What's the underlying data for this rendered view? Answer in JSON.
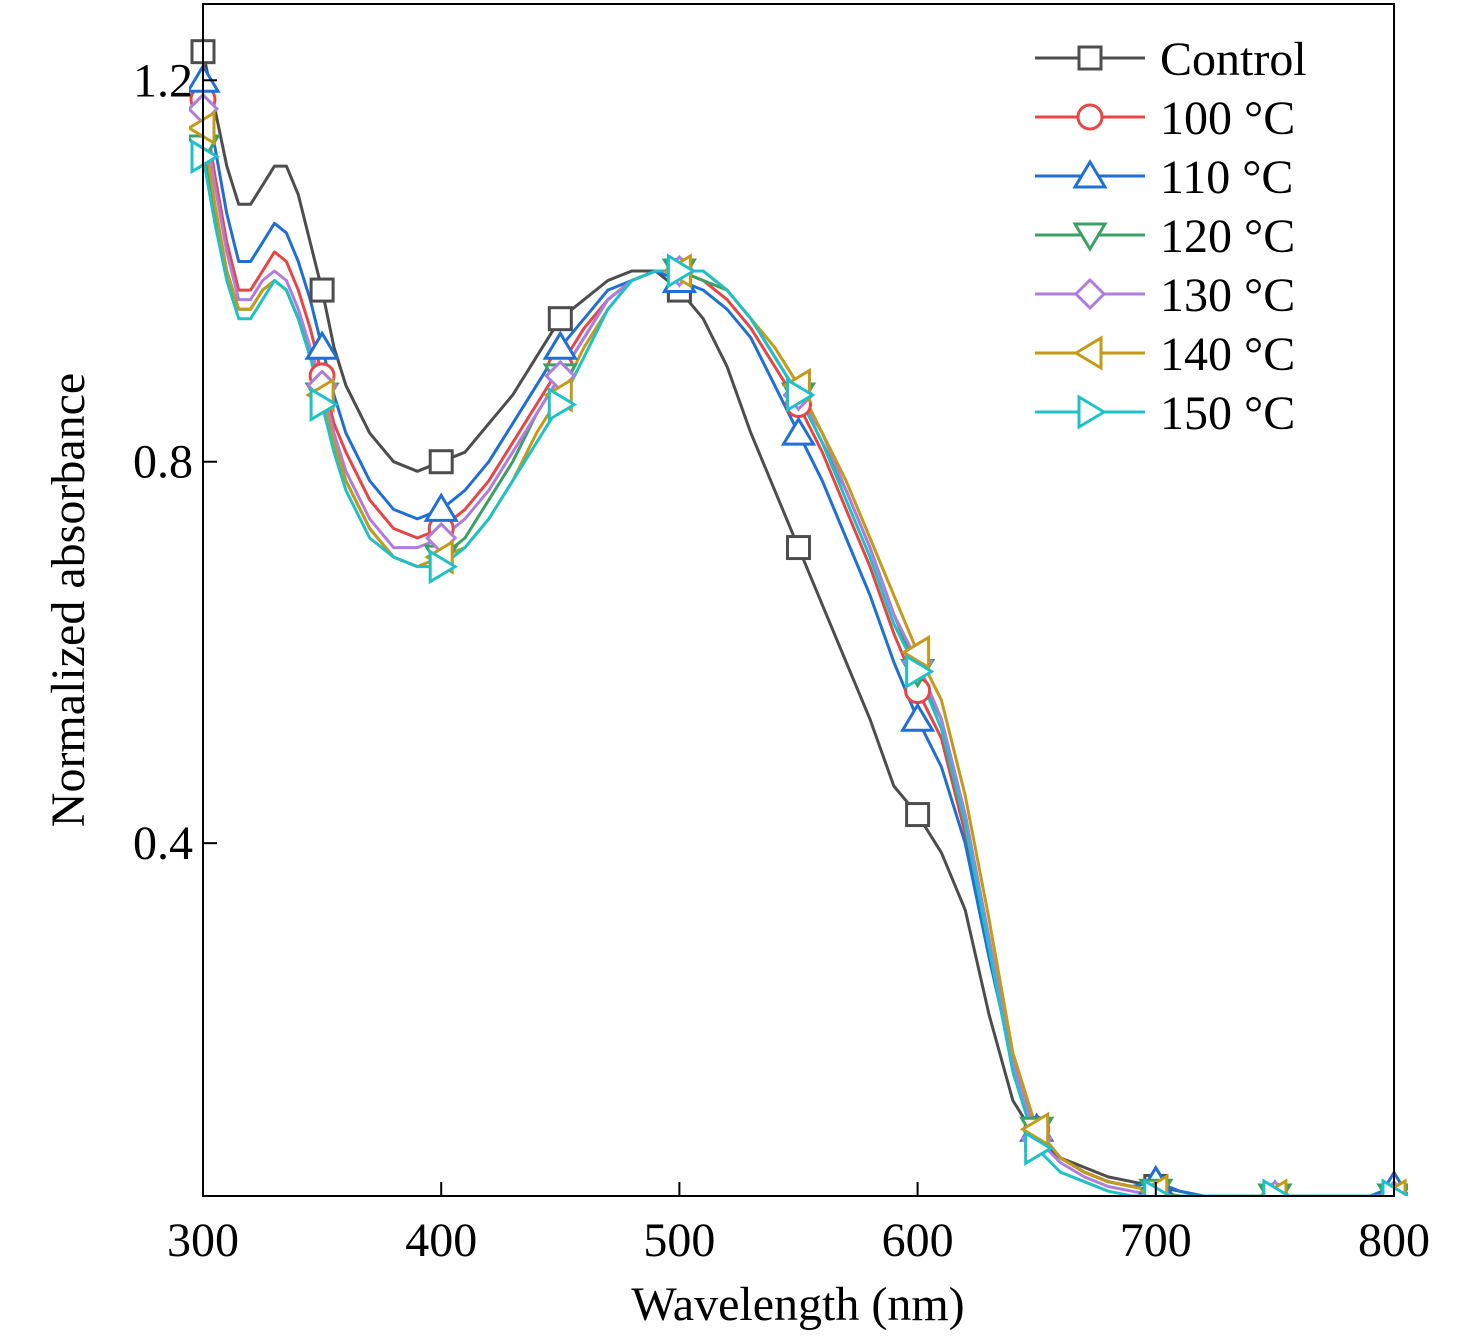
{
  "chart_data": {
    "type": "line",
    "xlabel": "Wavelength (nm)",
    "ylabel": "Normalized absorbance",
    "xlim": [
      300,
      800
    ],
    "ylim": [
      0.03,
      1.28
    ],
    "xticks": [
      300,
      400,
      500,
      600,
      700,
      800
    ],
    "yticks": [
      0.4,
      0.8,
      1.2
    ],
    "xtick_labels": [
      "300",
      "400",
      "500",
      "600",
      "700",
      "800"
    ],
    "ytick_labels": [
      "0.4",
      "0.8",
      "1.2"
    ],
    "grid": false,
    "legend_position": "top-right",
    "marker_x": [
      300,
      350,
      400,
      450,
      500,
      550,
      600,
      650,
      700,
      750,
      800
    ],
    "series": [
      {
        "name": "Control",
        "color": "#4d4d4d",
        "marker": "square",
        "x": [
          300,
          305,
          310,
          315,
          320,
          325,
          330,
          335,
          340,
          345,
          350,
          355,
          360,
          370,
          380,
          390,
          400,
          410,
          420,
          430,
          440,
          450,
          460,
          470,
          480,
          490,
          500,
          510,
          520,
          530,
          540,
          550,
          560,
          570,
          580,
          590,
          600,
          610,
          620,
          630,
          640,
          650,
          660,
          670,
          680,
          690,
          700,
          710,
          720,
          730,
          740,
          750,
          760,
          770,
          780,
          790,
          800
        ],
        "y": [
          1.23,
          1.17,
          1.11,
          1.07,
          1.07,
          1.09,
          1.11,
          1.11,
          1.08,
          1.03,
          0.98,
          0.92,
          0.88,
          0.83,
          0.8,
          0.79,
          0.8,
          0.81,
          0.84,
          0.87,
          0.91,
          0.95,
          0.97,
          0.99,
          1.0,
          1.0,
          0.98,
          0.95,
          0.9,
          0.83,
          0.77,
          0.71,
          0.65,
          0.59,
          0.53,
          0.46,
          0.43,
          0.39,
          0.33,
          0.22,
          0.13,
          0.09,
          0.07,
          0.06,
          0.05,
          0.045,
          0.04,
          0.035,
          0.03,
          0.03,
          0.03,
          0.03,
          0.03,
          0.03,
          0.03,
          0.03,
          0.03
        ]
      },
      {
        "name": "100 °C",
        "color": "#e84545",
        "marker": "circle",
        "x": [
          300,
          305,
          310,
          315,
          320,
          325,
          330,
          335,
          340,
          345,
          350,
          355,
          360,
          370,
          380,
          390,
          400,
          410,
          420,
          430,
          440,
          450,
          460,
          470,
          480,
          490,
          500,
          510,
          520,
          530,
          540,
          550,
          560,
          570,
          580,
          590,
          600,
          610,
          620,
          630,
          640,
          650,
          660,
          670,
          680,
          690,
          700,
          710,
          720,
          730,
          740,
          750,
          760,
          770,
          780,
          790,
          800
        ],
        "y": [
          1.18,
          1.1,
          1.03,
          0.98,
          0.98,
          1.0,
          1.02,
          1.01,
          0.98,
          0.94,
          0.89,
          0.84,
          0.81,
          0.76,
          0.73,
          0.72,
          0.73,
          0.75,
          0.78,
          0.82,
          0.86,
          0.9,
          0.94,
          0.97,
          0.99,
          1.0,
          1.0,
          0.99,
          0.97,
          0.94,
          0.9,
          0.86,
          0.81,
          0.75,
          0.69,
          0.62,
          0.56,
          0.51,
          0.41,
          0.29,
          0.17,
          0.1,
          0.07,
          0.055,
          0.045,
          0.04,
          0.035,
          0.03,
          0.03,
          0.03,
          0.03,
          0.03,
          0.03,
          0.03,
          0.03,
          0.03,
          0.03
        ]
      },
      {
        "name": "110 °C",
        "color": "#1f6fd6",
        "marker": "triangle-up",
        "x": [
          300,
          305,
          310,
          315,
          320,
          325,
          330,
          335,
          340,
          345,
          350,
          355,
          360,
          370,
          380,
          390,
          400,
          410,
          420,
          430,
          440,
          450,
          460,
          470,
          480,
          490,
          500,
          510,
          520,
          530,
          540,
          550,
          560,
          570,
          580,
          590,
          600,
          610,
          620,
          630,
          640,
          650,
          660,
          670,
          680,
          690,
          700,
          710,
          720,
          730,
          740,
          750,
          760,
          770,
          780,
          790,
          800
        ],
        "y": [
          1.2,
          1.13,
          1.06,
          1.01,
          1.01,
          1.03,
          1.05,
          1.04,
          1.01,
          0.97,
          0.92,
          0.87,
          0.83,
          0.78,
          0.75,
          0.74,
          0.75,
          0.77,
          0.8,
          0.84,
          0.88,
          0.92,
          0.95,
          0.98,
          0.99,
          1.0,
          0.99,
          0.98,
          0.96,
          0.93,
          0.88,
          0.83,
          0.78,
          0.72,
          0.66,
          0.59,
          0.53,
          0.48,
          0.4,
          0.28,
          0.17,
          0.1,
          0.07,
          0.055,
          0.045,
          0.04,
          0.045,
          0.035,
          0.03,
          0.03,
          0.03,
          0.03,
          0.03,
          0.03,
          0.03,
          0.03,
          0.04
        ]
      },
      {
        "name": "120 °C",
        "color": "#3aa064",
        "marker": "triangle-down",
        "x": [
          300,
          305,
          310,
          315,
          320,
          325,
          330,
          335,
          340,
          345,
          350,
          355,
          360,
          370,
          380,
          390,
          400,
          410,
          420,
          430,
          440,
          450,
          460,
          470,
          480,
          490,
          500,
          510,
          520,
          530,
          540,
          550,
          560,
          570,
          580,
          590,
          600,
          610,
          620,
          630,
          640,
          650,
          660,
          670,
          680,
          690,
          700,
          710,
          720,
          730,
          740,
          750,
          760,
          770,
          780,
          790,
          800
        ],
        "y": [
          1.13,
          1.06,
          1.0,
          0.96,
          0.96,
          0.98,
          0.99,
          0.98,
          0.95,
          0.91,
          0.87,
          0.82,
          0.78,
          0.73,
          0.7,
          0.69,
          0.7,
          0.72,
          0.76,
          0.8,
          0.85,
          0.89,
          0.93,
          0.97,
          0.99,
          1.0,
          1.0,
          0.99,
          0.98,
          0.95,
          0.91,
          0.87,
          0.82,
          0.77,
          0.71,
          0.64,
          0.58,
          0.53,
          0.43,
          0.3,
          0.17,
          0.1,
          0.07,
          0.055,
          0.045,
          0.04,
          0.035,
          0.03,
          0.03,
          0.03,
          0.03,
          0.03,
          0.03,
          0.03,
          0.03,
          0.03,
          0.03
        ]
      },
      {
        "name": "130 °C",
        "color": "#b07ce0",
        "marker": "diamond",
        "x": [
          300,
          305,
          310,
          315,
          320,
          325,
          330,
          335,
          340,
          345,
          350,
          355,
          360,
          370,
          380,
          390,
          400,
          410,
          420,
          430,
          440,
          450,
          460,
          470,
          480,
          490,
          500,
          510,
          520,
          530,
          540,
          550,
          560,
          570,
          580,
          590,
          600,
          610,
          620,
          630,
          640,
          650,
          660,
          670,
          680,
          690,
          700,
          710,
          720,
          730,
          740,
          750,
          760,
          770,
          780,
          790,
          800
        ],
        "y": [
          1.17,
          1.09,
          1.02,
          0.97,
          0.97,
          0.99,
          1.0,
          0.99,
          0.96,
          0.92,
          0.88,
          0.83,
          0.79,
          0.74,
          0.71,
          0.71,
          0.72,
          0.74,
          0.77,
          0.81,
          0.85,
          0.89,
          0.93,
          0.97,
          0.99,
          1.0,
          1.0,
          1.0,
          0.98,
          0.95,
          0.91,
          0.87,
          0.83,
          0.77,
          0.71,
          0.64,
          0.59,
          0.53,
          0.43,
          0.3,
          0.17,
          0.09,
          0.065,
          0.05,
          0.04,
          0.035,
          0.03,
          0.03,
          0.03,
          0.03,
          0.03,
          0.03,
          0.03,
          0.03,
          0.03,
          0.03,
          0.03
        ]
      },
      {
        "name": "140 °C",
        "color": "#c59a17",
        "marker": "triangle-left",
        "x": [
          300,
          305,
          310,
          315,
          320,
          325,
          330,
          335,
          340,
          345,
          350,
          355,
          360,
          370,
          380,
          390,
          400,
          410,
          420,
          430,
          440,
          450,
          460,
          470,
          480,
          490,
          500,
          510,
          520,
          530,
          540,
          550,
          560,
          570,
          580,
          590,
          600,
          610,
          620,
          630,
          640,
          650,
          660,
          670,
          680,
          690,
          700,
          710,
          720,
          730,
          740,
          750,
          760,
          770,
          780,
          790,
          800
        ],
        "y": [
          1.15,
          1.07,
          1.0,
          0.96,
          0.96,
          0.98,
          0.99,
          0.98,
          0.95,
          0.91,
          0.87,
          0.82,
          0.78,
          0.73,
          0.7,
          0.69,
          0.7,
          0.71,
          0.74,
          0.78,
          0.83,
          0.87,
          0.92,
          0.96,
          0.99,
          1.0,
          1.0,
          1.0,
          0.98,
          0.95,
          0.92,
          0.88,
          0.83,
          0.78,
          0.72,
          0.66,
          0.6,
          0.55,
          0.45,
          0.32,
          0.18,
          0.1,
          0.07,
          0.055,
          0.045,
          0.04,
          0.035,
          0.03,
          0.03,
          0.03,
          0.03,
          0.03,
          0.03,
          0.03,
          0.03,
          0.03,
          0.03
        ]
      },
      {
        "name": "150 °C",
        "color": "#1fc1c8",
        "marker": "triangle-right",
        "x": [
          300,
          305,
          310,
          315,
          320,
          325,
          330,
          335,
          340,
          345,
          350,
          355,
          360,
          370,
          380,
          390,
          400,
          410,
          420,
          430,
          440,
          450,
          460,
          470,
          480,
          490,
          500,
          510,
          520,
          530,
          540,
          550,
          560,
          570,
          580,
          590,
          600,
          610,
          620,
          630,
          640,
          650,
          660,
          670,
          680,
          690,
          700,
          710,
          720,
          730,
          740,
          750,
          760,
          770,
          780,
          790,
          800
        ],
        "y": [
          1.12,
          1.05,
          0.99,
          0.95,
          0.95,
          0.97,
          0.99,
          0.98,
          0.95,
          0.91,
          0.86,
          0.81,
          0.77,
          0.72,
          0.7,
          0.69,
          0.69,
          0.71,
          0.74,
          0.78,
          0.82,
          0.86,
          0.91,
          0.96,
          0.99,
          1.0,
          1.0,
          1.0,
          0.98,
          0.95,
          0.91,
          0.87,
          0.82,
          0.76,
          0.7,
          0.63,
          0.58,
          0.52,
          0.42,
          0.29,
          0.16,
          0.08,
          0.055,
          0.045,
          0.035,
          0.03,
          0.03,
          0.03,
          0.03,
          0.03,
          0.03,
          0.03,
          0.03,
          0.03,
          0.03,
          0.03,
          0.03
        ]
      }
    ]
  }
}
